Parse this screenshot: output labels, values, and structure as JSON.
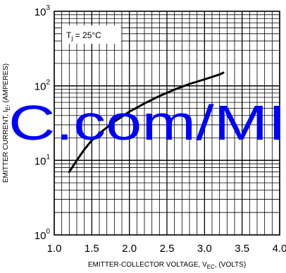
{
  "chart_data": {
    "type": "line",
    "xlabel": "EMITTER-COLLECTOR VOLTAGE, V",
    "xlabel_sub": "EC",
    "xlabel_suffix": ", (VOLTS)",
    "ylabel": "EMITTER CURRENT, I",
    "ylabel_sub": "E",
    "ylabel_suffix": ", (AMPERES)",
    "annotation": {
      "base": "T",
      "sub": "j",
      "rest": " = 25°C"
    },
    "xlim": [
      1.0,
      4.0
    ],
    "ylim": [
      1,
      1000
    ],
    "yscale": "log",
    "x_ticks": [
      "1.0",
      "1.5",
      "2.0",
      "2.5",
      "3.0",
      "3.5",
      "4.0"
    ],
    "y_ticks": [
      {
        "base": "10",
        "exp": "0"
      },
      {
        "base": "10",
        "exp": "1"
      },
      {
        "base": "10",
        "exp": "2"
      },
      {
        "base": "10",
        "exp": "3"
      }
    ],
    "grid": true,
    "series": [
      {
        "x": [
          1.2,
          1.3,
          1.4,
          1.5,
          1.6,
          1.8,
          2.0,
          2.2,
          2.4,
          2.6,
          2.8,
          3.0,
          3.2,
          3.25
        ],
        "y": [
          7,
          10,
          14,
          18.5,
          23,
          33,
          45,
          58,
          73,
          89,
          106,
          122,
          142,
          150
        ],
        "color": "#000000"
      }
    ]
  },
  "watermark": "C.com/MI",
  "colors": {
    "watermark": "#0000ff",
    "grid": "#000000",
    "curve": "#000000"
  }
}
